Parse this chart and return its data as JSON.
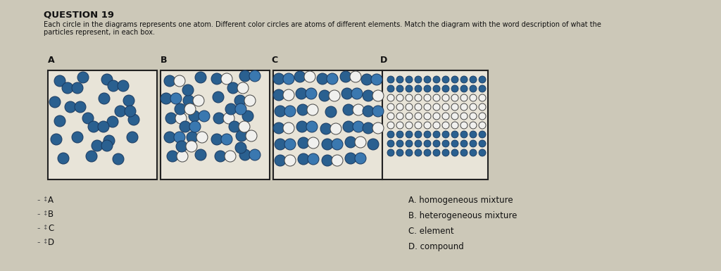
{
  "title": "QUESTION 19",
  "line1": "Each circle in the diagrams represents one atom. Different color circles are atoms of different elements. Match the diagram with the word description of what the",
  "line2": "particles represent, in each box.",
  "box_labels": [
    "A",
    "B",
    "C",
    "D"
  ],
  "answers": [
    "A. homogeneous mixture",
    "B. heterogeneous mixture",
    "C. element",
    "D. compound"
  ],
  "drag_labels": [
    "A",
    "B",
    "C",
    "D"
  ],
  "bg_color": "#ccc8b8",
  "box_bg": "#e8e4d8",
  "blue_dark": "#2a6090",
  "blue_med": "#3a78b0",
  "white_circle": "#f0f0ee",
  "box_edge": "#222222",
  "text_color": "#111111"
}
